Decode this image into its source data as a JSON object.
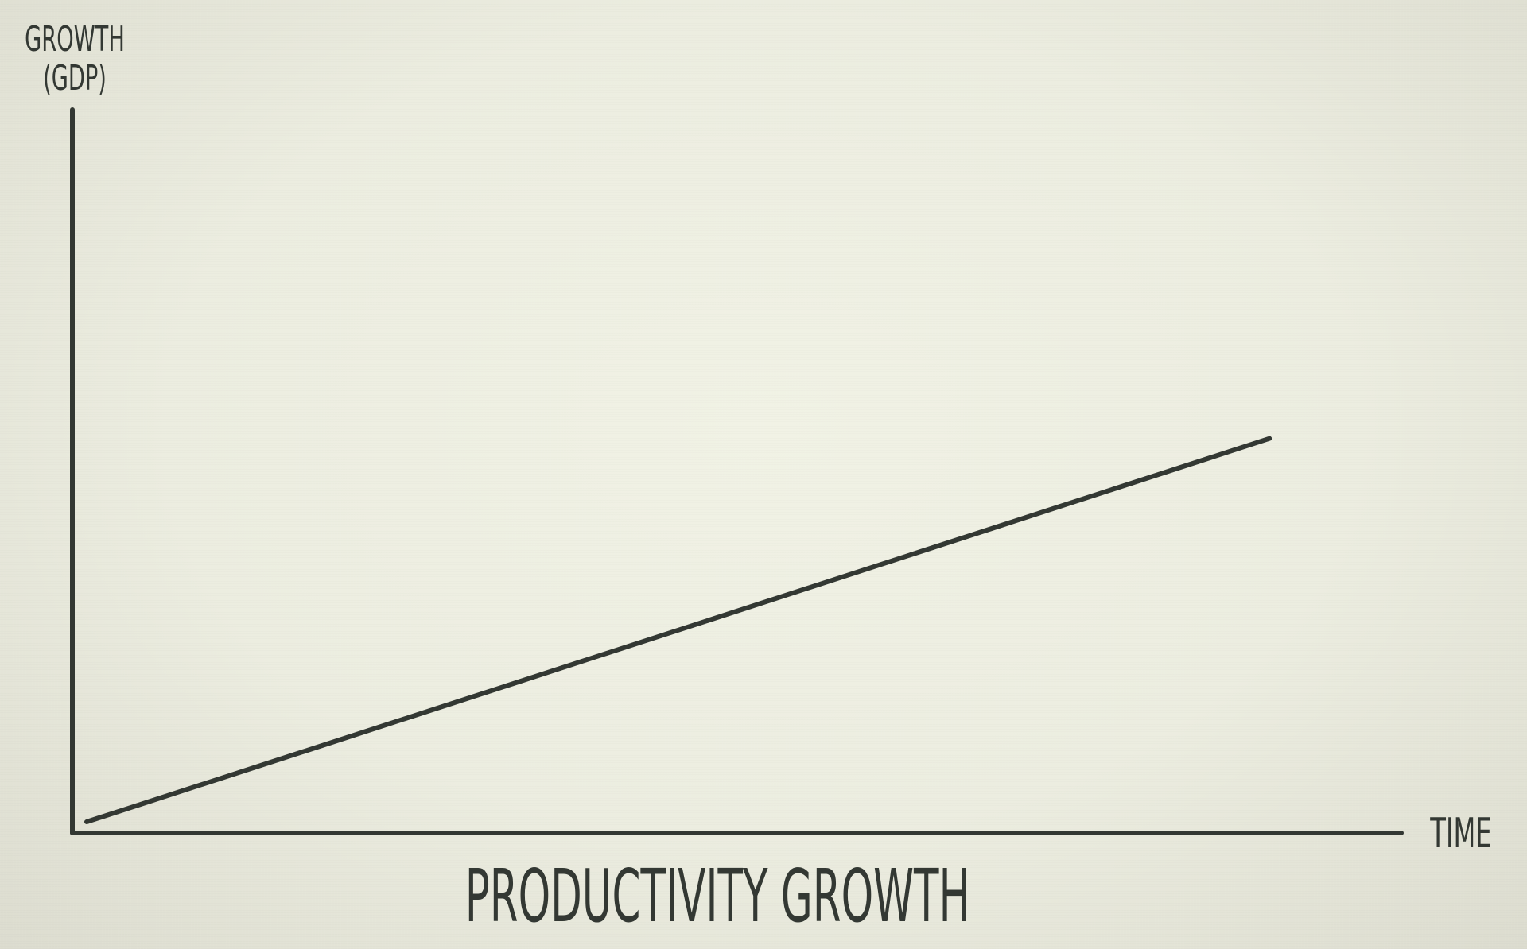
{
  "chart_data": {
    "type": "line",
    "title": "PRODUCTIVITY GROWTH",
    "ylabel_line1": "GROWTH",
    "ylabel_line2": "(GDP)",
    "xlabel": "TIME",
    "xlim": [
      0,
      10
    ],
    "ylim": [
      0,
      10
    ],
    "grid": false,
    "legend": "none",
    "series": [
      {
        "x": [
          0,
          8.9
        ],
        "y": [
          0,
          5.3
        ]
      }
    ]
  },
  "colors": {
    "ink": "#333833",
    "paper": "#ecede0"
  }
}
